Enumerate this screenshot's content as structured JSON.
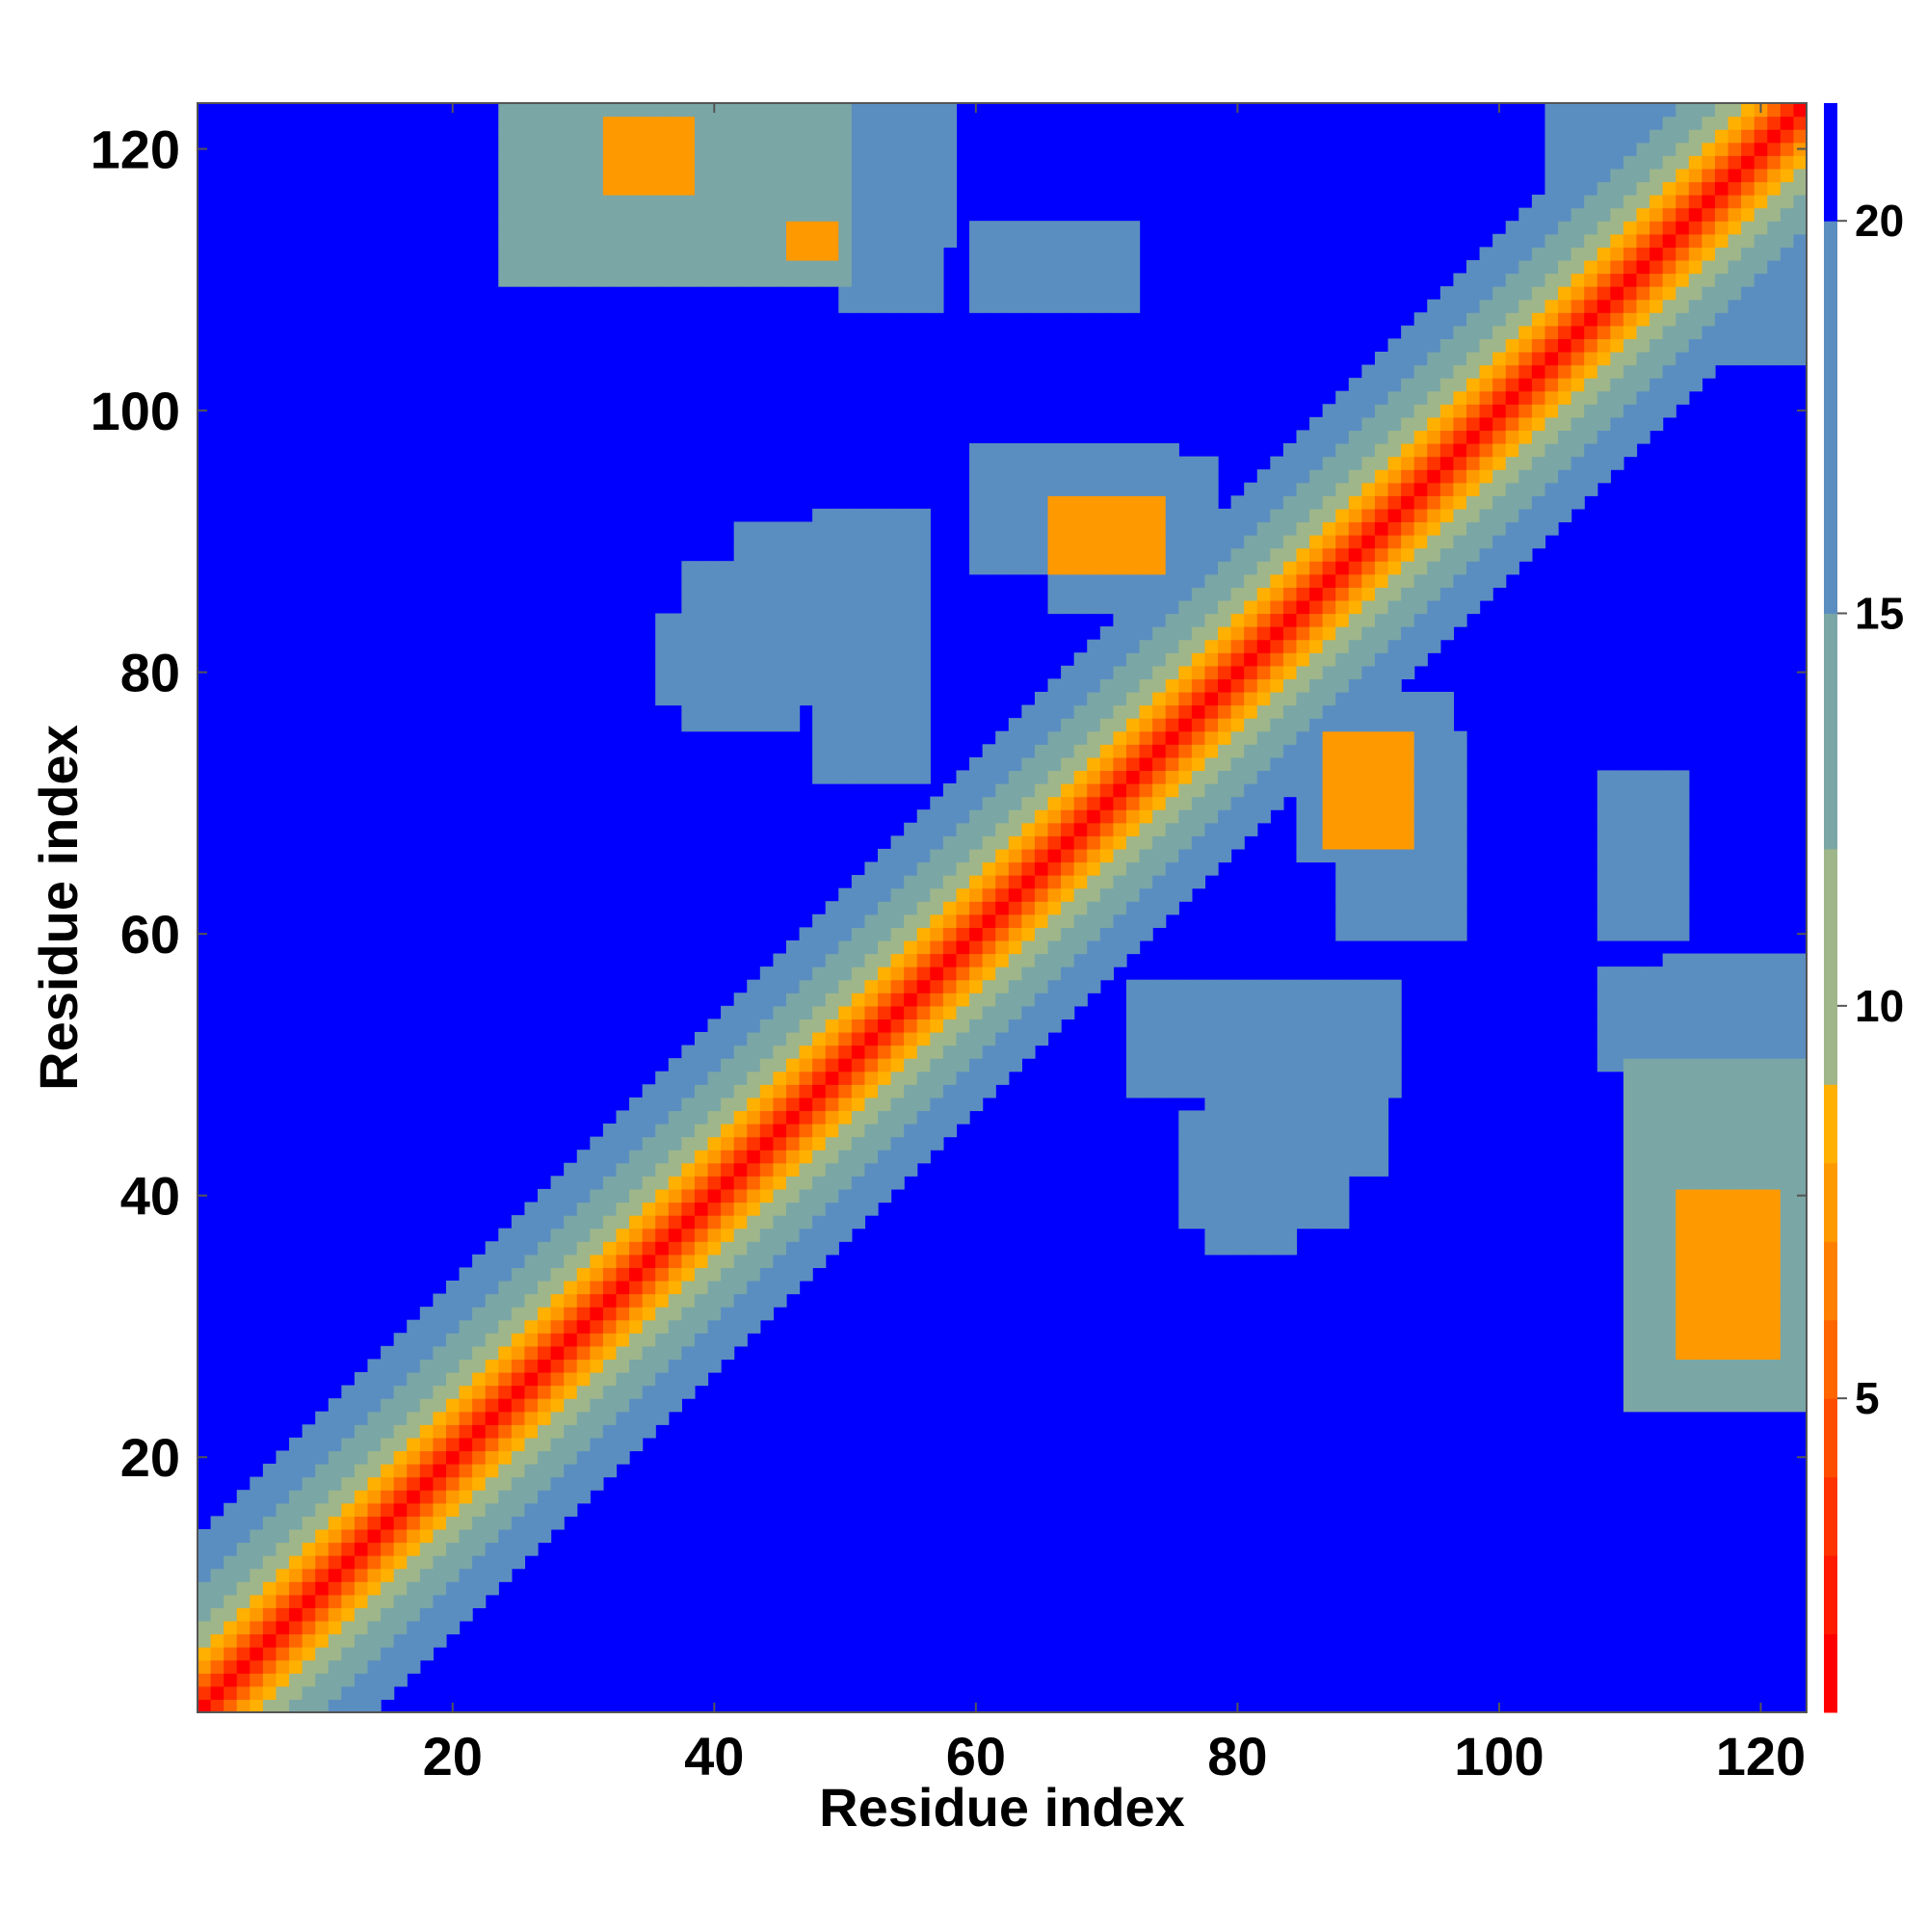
{
  "chart_data": {
    "type": "heatmap",
    "title": "",
    "xlabel": "Residue index",
    "ylabel": "Residue index",
    "xlim": [
      1,
      123
    ],
    "ylim": [
      1,
      123
    ],
    "x_ticks": [
      20,
      40,
      60,
      80,
      100,
      120
    ],
    "y_ticks": [
      20,
      40,
      60,
      80,
      100,
      120
    ],
    "colorbar": {
      "range": [
        1,
        21.5
      ],
      "ticks": [
        5,
        10,
        15,
        20
      ],
      "bands": [
        {
          "from": 1,
          "to": 2,
          "color": "#ff0000"
        },
        {
          "from": 2,
          "to": 3,
          "color": "#ff1a00"
        },
        {
          "from": 3,
          "to": 4,
          "color": "#ff3300"
        },
        {
          "from": 4,
          "to": 5,
          "color": "#ff4d00"
        },
        {
          "from": 5,
          "to": 6,
          "color": "#ff6600"
        },
        {
          "from": 6,
          "to": 7,
          "color": "#ff8000"
        },
        {
          "from": 7,
          "to": 8,
          "color": "#ff9900"
        },
        {
          "from": 8,
          "to": 9,
          "color": "#ffb000"
        },
        {
          "from": 9,
          "to": 12,
          "color": "#9fb68a"
        },
        {
          "from": 12,
          "to": 15,
          "color": "#7aa6a6"
        },
        {
          "from": 15,
          "to": 20,
          "color": "#5b8ec0"
        },
        {
          "from": 20,
          "to": 21.5,
          "color": "#0000ff"
        }
      ]
    },
    "background_color": "#0000ff",
    "diagonal_band": {
      "value_profile": [
        {
          "offset": 0,
          "value": 1.5
        },
        {
          "offset": 1,
          "value": 3.8
        },
        {
          "offset": 2,
          "value": 5.5
        },
        {
          "offset": 3,
          "value": 7.0
        },
        {
          "offset": 4,
          "value": 8.5
        },
        {
          "offset": 5,
          "value": 9.8
        },
        {
          "offset": 6,
          "value": 11.0
        },
        {
          "offset": 7,
          "value": 12.2
        },
        {
          "offset": 8,
          "value": 13.3
        },
        {
          "offset": 9,
          "value": 14.4
        },
        {
          "offset": 10,
          "value": 15.5
        },
        {
          "offset": 11,
          "value": 16.6
        },
        {
          "offset": 12,
          "value": 17.8
        },
        {
          "offset": 13,
          "value": 19.2
        }
      ]
    },
    "contact_patches": [
      {
        "x": [
          28,
          58
        ],
        "y": [
          113,
          123
        ],
        "value": 16.5
      },
      {
        "x": [
          32,
          38
        ],
        "y": [
          117,
          122
        ],
        "value": 7.5
      },
      {
        "x": [
          46,
          49
        ],
        "y": [
          112,
          114
        ],
        "value": 7.5
      },
      {
        "x": [
          60,
          72
        ],
        "y": [
          108,
          114
        ],
        "value": 17.0
      },
      {
        "x": [
          36,
          52
        ],
        "y": [
          78,
          84
        ],
        "value": 17.5
      },
      {
        "x": [
          42,
          55
        ],
        "y": [
          84,
          91
        ],
        "value": 17.5
      },
      {
        "x": [
          60,
          75
        ],
        "y": [
          88,
          97
        ],
        "value": 16.0
      },
      {
        "x": [
          66,
          74
        ],
        "y": [
          88,
          93
        ],
        "value": 7.0
      },
      {
        "x": [
          85,
          96
        ],
        "y": [
          66,
          78
        ],
        "value": 15.5
      },
      {
        "x": [
          87,
          93
        ],
        "y": [
          67,
          75
        ],
        "value": 7.5
      },
      {
        "x": [
          72,
          92
        ],
        "y": [
          48,
          56
        ],
        "value": 17.0
      },
      {
        "x": [
          76,
          88
        ],
        "y": [
          38,
          46
        ],
        "value": 17.5
      },
      {
        "x": [
          108,
          118
        ],
        "y": [
          50,
          57
        ],
        "value": 16.5
      },
      {
        "x": [
          110,
          123
        ],
        "y": [
          24,
          50
        ],
        "value": 14.5
      },
      {
        "x": [
          114,
          121
        ],
        "y": [
          28,
          40
        ],
        "value": 7.5
      },
      {
        "x": [
          104,
          116
        ],
        "y": [
          112,
          123
        ],
        "value": 16.5
      }
    ]
  }
}
